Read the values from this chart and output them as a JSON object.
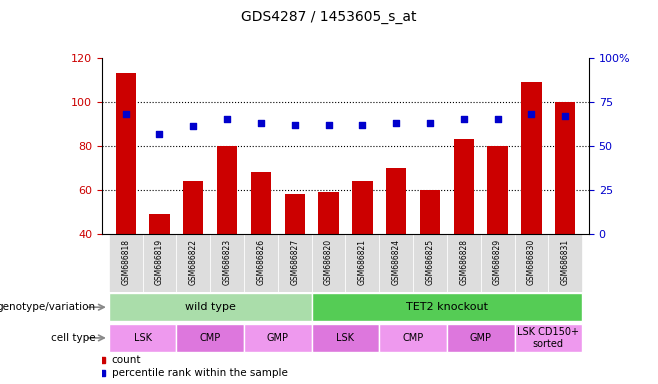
{
  "title": "GDS4287 / 1453605_s_at",
  "samples": [
    "GSM686818",
    "GSM686819",
    "GSM686822",
    "GSM686823",
    "GSM686826",
    "GSM686827",
    "GSM686820",
    "GSM686821",
    "GSM686824",
    "GSM686825",
    "GSM686828",
    "GSM686829",
    "GSM686830",
    "GSM686831"
  ],
  "counts": [
    113,
    49,
    64,
    80,
    68,
    58,
    59,
    64,
    70,
    60,
    83,
    80,
    109,
    100
  ],
  "percentiles": [
    68,
    57,
    61,
    65,
    63,
    62,
    62,
    62,
    63,
    63,
    65,
    65,
    68,
    67
  ],
  "ylim_left": [
    40,
    120
  ],
  "ylim_right": [
    0,
    100
  ],
  "yticks_left": [
    40,
    60,
    80,
    100,
    120
  ],
  "yticks_right": [
    0,
    25,
    50,
    75,
    100
  ],
  "bar_color": "#cc0000",
  "dot_color": "#0000cc",
  "genotype_groups": [
    {
      "label": "wild type",
      "start": 0,
      "end": 6,
      "color": "#aaeea a"
    },
    {
      "label": "TET2 knockout",
      "start": 6,
      "end": 14,
      "color": "#66dd66"
    }
  ],
  "cell_type_groups": [
    {
      "label": "LSK",
      "start": 0,
      "end": 2,
      "color": "#ee99ee"
    },
    {
      "label": "CMP",
      "start": 2,
      "end": 4,
      "color": "#dd77dd"
    },
    {
      "label": "GMP",
      "start": 4,
      "end": 6,
      "color": "#ee99ee"
    },
    {
      "label": "LSK",
      "start": 6,
      "end": 8,
      "color": "#dd77dd"
    },
    {
      "label": "CMP",
      "start": 8,
      "end": 10,
      "color": "#ee99ee"
    },
    {
      "label": "GMP",
      "start": 10,
      "end": 12,
      "color": "#dd77dd"
    },
    {
      "label": "LSK CD150+\nsorted",
      "start": 12,
      "end": 14,
      "color": "#ee99ee"
    }
  ],
  "legend_count_color": "#cc0000",
  "legend_dot_color": "#0000cc",
  "axis_color_left": "#cc0000",
  "axis_color_right": "#0000cc",
  "sample_bg_color": "#dddddd",
  "geno_color_1": "#aaddaa",
  "geno_color_2": "#55cc55",
  "cell_color_light": "#ee99ee",
  "cell_color_dark": "#dd77dd"
}
